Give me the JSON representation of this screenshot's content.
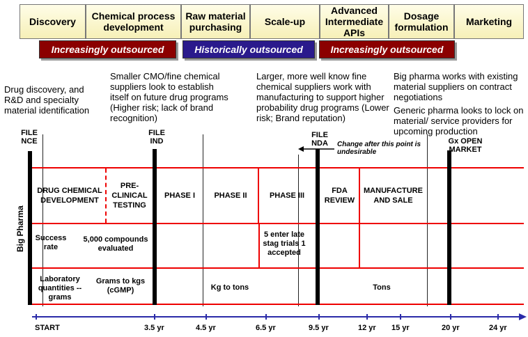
{
  "stages": [
    "Discovery",
    "Chemical process development",
    "Raw material purchasing",
    "Scale-up",
    "Advanced Intermediate APIs",
    "Dosage formulation",
    "Marketing"
  ],
  "banners": {
    "left": "Increasingly outsourced",
    "middle": "Historically outsourced",
    "right": "Increasingly outsourced"
  },
  "banner_colors": {
    "outsourced": "#8b0000",
    "historical": "#2a1a8c"
  },
  "notes": {
    "n1": "Drug discovery, and R&D and specialty material identification",
    "n2": "Smaller CMO/fine chemical suppliers look to establish itself on future drug programs (Higher risk; lack of brand recognition)",
    "n3": "Larger, more well know fine chemical suppliers work with manufacturing to support higher probability drug programs (Lower risk; Brand reputation)",
    "n4a": "Big pharma works with existing material suppliers on contract negotiations",
    "n4b": "Generic pharma looks to lock on material/ service providers for upcoming production"
  },
  "files": {
    "nce": "FILE NCE",
    "ind": "FILE IND",
    "nda": "FILE NDA",
    "gx": "Gx OPEN MARKET"
  },
  "change_note": "Change after this point is undesirable",
  "row_label": "Big Pharma",
  "phases": {
    "drug": "DRUG CHEMICAL DEVELOPMENT",
    "pre": "PRE- CLINICAL TESTING",
    "p1": "PHASE I",
    "p2": "PHASE II",
    "p3": "PHASE III",
    "fda": "FDA REVIEW",
    "mfg": "MANUFACTURE AND SALE"
  },
  "row2": {
    "success": "Success rate",
    "compounds": "5,000 compounds evaluated",
    "late": "5 enter late stag trials 1 accepted"
  },
  "row3": {
    "lab": "Laboratory quantities -- grams",
    "grams": "Grams to kgs (cGMP)",
    "kg": "Kg to tons",
    "tons": "Tons"
  },
  "timeline": [
    "START",
    "3.5 yr",
    "4.5 yr",
    "6.5 yr",
    "9.5 yr",
    "12 yr",
    "15 yr",
    "20 yr",
    "24 yr"
  ]
}
